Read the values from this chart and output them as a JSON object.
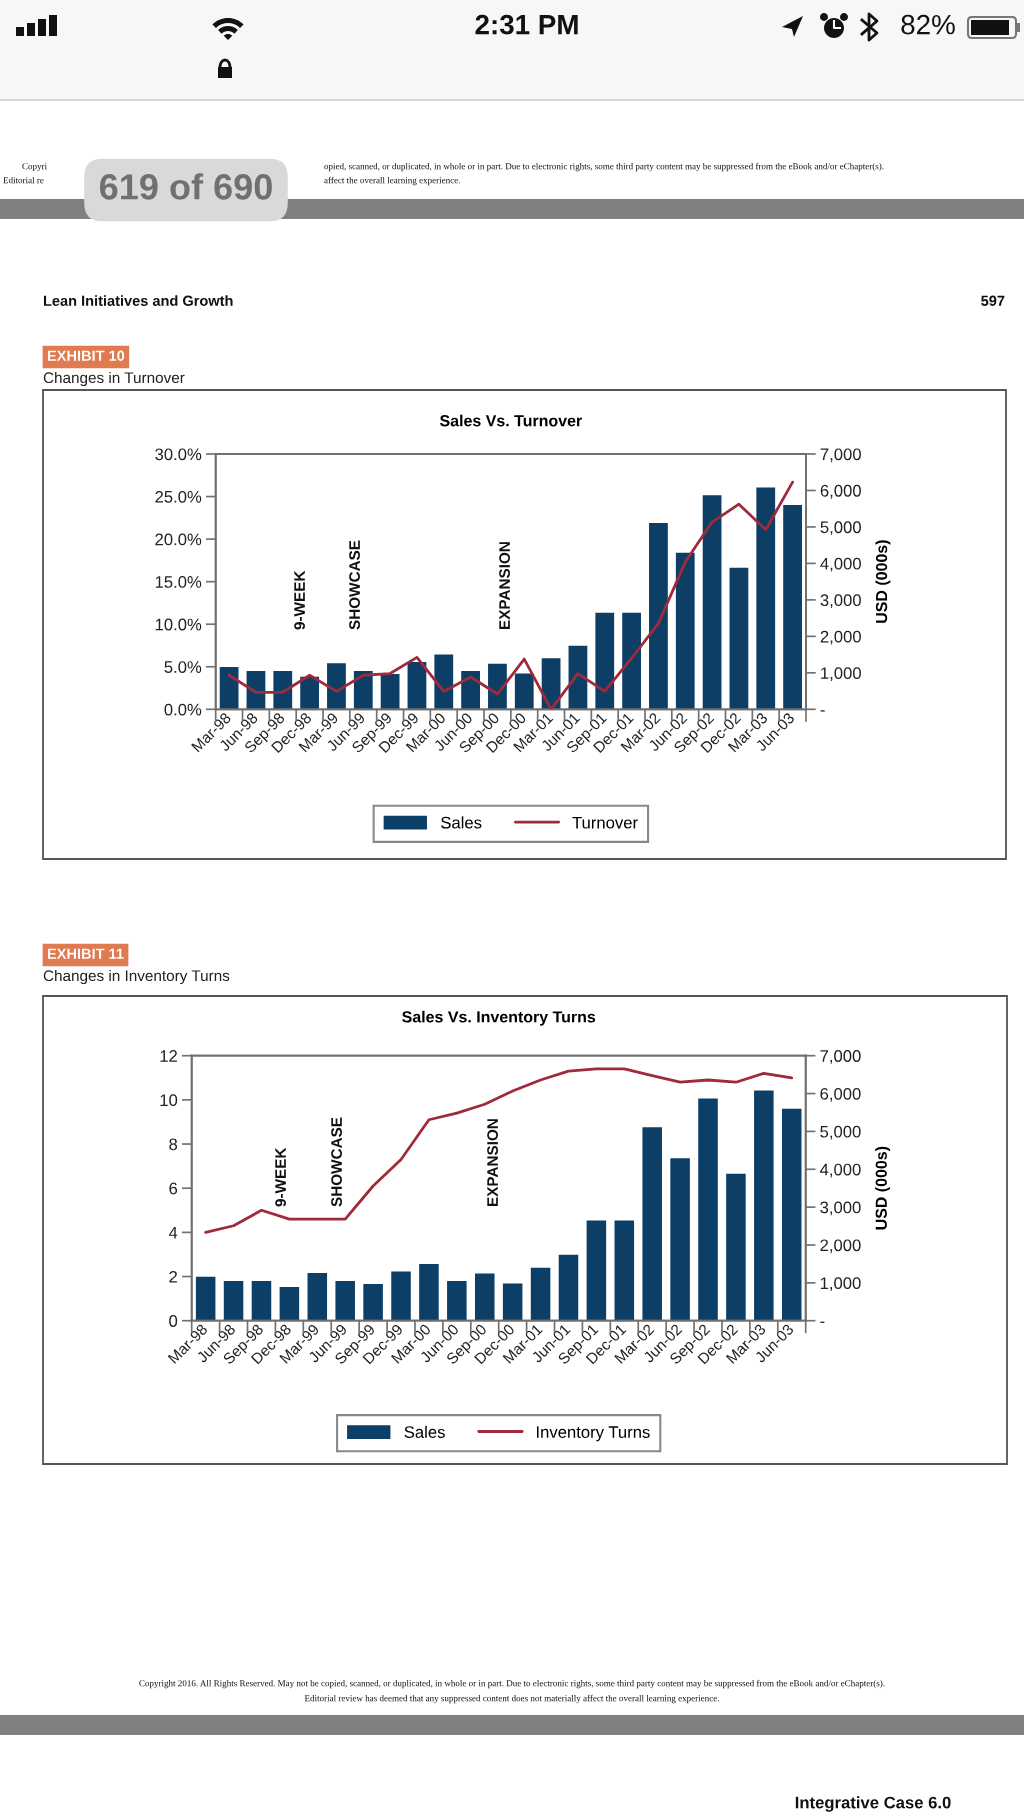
{
  "chart_data": [
    {
      "type": "bar",
      "title": "Sales Vs. Turnover",
      "y2label": "USD (000s)",
      "categories": [
        "Mar-98",
        "Jun-98",
        "Sep-98",
        "Dec-98",
        "Mar-99",
        "Jun-99",
        "Sep-99",
        "Dec-99",
        "Mar-00",
        "Jun-00",
        "Sep-00",
        "Dec-00",
        "Mar-01",
        "Jun-01",
        "Sep-01",
        "Dec-01",
        "Mar-02",
        "Jun-02",
        "Sep-02",
        "Dec-02",
        "Mar-03",
        "Jun-03"
      ],
      "series": [
        {
          "name": "Sales",
          "axis": "y2",
          "color": "#0d3e66",
          "values": [
            1160,
            1050,
            1050,
            890,
            1260,
            1050,
            970,
            1300,
            1500,
            1050,
            1250,
            980,
            1400,
            1740,
            2650,
            2650,
            5110,
            4290,
            5870,
            3880,
            6080,
            5600
          ]
        },
        {
          "name": "Turnover",
          "type": "line",
          "color": "#9e2a3a",
          "values": [
            4.0,
            2.0,
            2.0,
            4.0,
            2.1,
            4.0,
            4.2,
            6.1,
            2.1,
            3.8,
            1.8,
            5.9,
            0.0,
            4.2,
            2.1,
            6.0,
            10.1,
            17.3,
            22.0,
            24.1,
            21.1,
            26.7
          ]
        }
      ],
      "ylim": [
        0,
        30
      ],
      "yticks": [
        {
          "value": 0,
          "label": "0.0%"
        },
        {
          "value": 5,
          "label": "5.0%"
        },
        {
          "value": 10,
          "label": "10.0%"
        },
        {
          "value": 15,
          "label": "15.0%"
        },
        {
          "value": 20,
          "label": "20.0%"
        },
        {
          "value": 25,
          "label": "25.0%"
        },
        {
          "value": 30,
          "label": "30.0%"
        }
      ],
      "y2lim": [
        0,
        7000
      ],
      "y2ticks": [
        {
          "value": 0,
          "label": "-"
        },
        {
          "value": 1000,
          "label": "1,000"
        },
        {
          "value": 2000,
          "label": "2,000"
        },
        {
          "value": 3000,
          "label": "3,000"
        },
        {
          "value": 4000,
          "label": "4,000"
        },
        {
          "value": 5000,
          "label": "5,000"
        },
        {
          "value": 6000,
          "label": "6,000"
        },
        {
          "value": 7000,
          "label": "7,000"
        }
      ],
      "legend": "bottom",
      "annotations": [
        "2:31 PM",
        "82%",
        "619 of 690",
        "Copyri",
        "Editorial re",
        "opied, scanned, or duplicated, in whole or in part. Due to electronic rights, some third party content may be suppressed from the eBook and/or eChapter(s).",
        "affect the overall learning experience.",
        "Lean Initiatives and Growth",
        "597",
        "EXHIBIT 10",
        "Changes in Turnover",
        "9-WEEK",
        "SHOWCASE",
        "EXPANSION"
      ]
    },
    {
      "type": "bar",
      "title": "Sales Vs. Inventory Turns",
      "y2label": "USD (000s)",
      "categories": [
        "Mar-98",
        "Jun-98",
        "Sep-98",
        "Dec-98",
        "Mar-99",
        "Jun-99",
        "Sep-99",
        "Dec-99",
        "Mar-00",
        "Jun-00",
        "Sep-00",
        "Dec-00",
        "Mar-01",
        "Jun-01",
        "Sep-01",
        "Dec-01",
        "Mar-02",
        "Jun-02",
        "Sep-02",
        "Dec-02",
        "Mar-03",
        "Jun-03"
      ],
      "series": [
        {
          "name": "Sales",
          "axis": "y2",
          "color": "#0d3e66",
          "values": [
            1160,
            1050,
            1050,
            890,
            1260,
            1050,
            970,
            1300,
            1500,
            1050,
            1250,
            980,
            1400,
            1740,
            2650,
            2650,
            5110,
            4290,
            5870,
            3880,
            6080,
            5600
          ]
        },
        {
          "name": "Inventory Turns",
          "type": "line",
          "color": "#9e2a3a",
          "values": [
            4.0,
            4.3,
            5.0,
            4.6,
            4.6,
            4.6,
            6.1,
            7.3,
            9.1,
            9.4,
            9.8,
            10.4,
            10.9,
            11.3,
            11.4,
            11.4,
            11.1,
            10.8,
            10.9,
            10.8,
            11.2,
            11.0
          ]
        }
      ],
      "ylim": [
        0,
        12
      ],
      "yticks": [
        0,
        2,
        4,
        6,
        8,
        10,
        12
      ],
      "y2lim": [
        0,
        7000
      ],
      "y2ticks": [
        {
          "value": 0,
          "label": "-"
        },
        {
          "value": 1000,
          "label": "1,000"
        },
        {
          "value": 2000,
          "label": "2,000"
        },
        {
          "value": 3000,
          "label": "3,000"
        },
        {
          "value": 4000,
          "label": "4,000"
        },
        {
          "value": 5000,
          "label": "5,000"
        },
        {
          "value": 6000,
          "label": "6,000"
        },
        {
          "value": 7000,
          "label": "7,000"
        }
      ],
      "legend": "bottom",
      "annotations": [
        "EXHIBIT 11",
        "Changes in Inventory Turns",
        "9-WEEK",
        "SHOWCASE",
        "EXPANSION",
        "Copyright 2016. All Rights Reserved. May not be copied, scanned, or duplicated, in whole or in part. Due to electronic rights, some third party content may be suppressed from the eBook and/or eChapter(s).",
        "Editorial review has deemed that any suppressed content does not materially affect the overall learning experience.",
        "Integrative Case 6.0"
      ]
    }
  ]
}
